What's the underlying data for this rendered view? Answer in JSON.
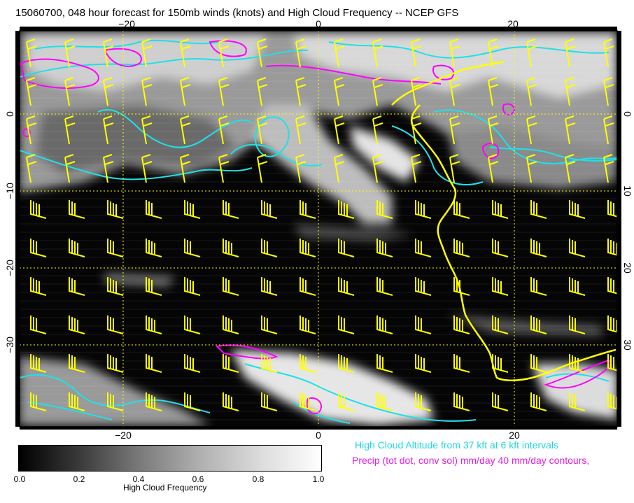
{
  "title": "15060700, 048 hour forecast for 150mb winds (knots) and High Cloud Frequency -- NCEP GFS",
  "map": {
    "lon_ticks_top": [
      "−20",
      "0",
      "20"
    ],
    "lon_ticks_bottom": [
      "−20",
      "0",
      "20"
    ],
    "lat_ticks_left": [
      "0",
      "−10",
      "−20",
      "−30"
    ],
    "lat_ticks_right": [
      "0",
      "10",
      "20",
      "30"
    ],
    "colors": {
      "cloud_altitude_contours": "#20e0e8",
      "precip_contours": "#ff00ff",
      "wind_barbs": "#ffff00",
      "grid": "#ffff00",
      "coastline": "#ffff00"
    }
  },
  "colorbar": {
    "ticks": [
      "0.0",
      "0.2",
      "0.4",
      "0.6",
      "0.8",
      "1.0"
    ],
    "label": "High Cloud Frequency"
  },
  "legend": {
    "cloud_altitude": "High Cloud Altitude from 37 kft at 6 kft intervals",
    "precip": "Precip (tot dot, conv sol) mm/day 40 mm/day contours,"
  }
}
